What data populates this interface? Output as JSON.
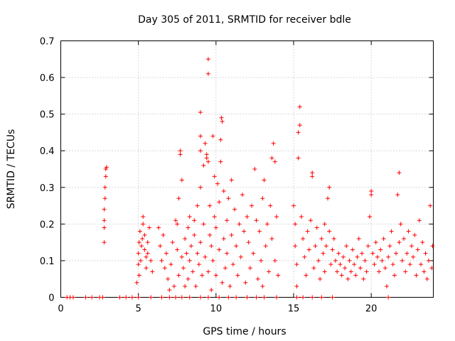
{
  "chart_data": {
    "type": "scatter",
    "title": "Day 305 of 2011, SRMTID for receiver bdle",
    "xlabel": "GPS time / hours",
    "ylabel": "SRMTID / TECUs",
    "xlim": [
      0,
      24
    ],
    "ylim": [
      0,
      0.7
    ],
    "xticks": [
      0,
      5,
      10,
      15,
      20
    ],
    "yticks": [
      0,
      0.1,
      0.2,
      0.3,
      0.4,
      0.5,
      0.6,
      0.7
    ],
    "grid": true,
    "marker": "+",
    "color": "#ff0000",
    "series": [
      {
        "name": "SRMTID",
        "points": [
          [
            0.4,
            0
          ],
          [
            0.6,
            0
          ],
          [
            0.8,
            0
          ],
          [
            1.6,
            0
          ],
          [
            2.0,
            0
          ],
          [
            2.5,
            0
          ],
          [
            2.7,
            0
          ],
          [
            3.8,
            0
          ],
          [
            4.2,
            0
          ],
          [
            4.6,
            0
          ],
          [
            5.0,
            0
          ],
          [
            5.8,
            0
          ],
          [
            6.5,
            0
          ],
          [
            7.0,
            0
          ],
          [
            7.4,
            0
          ],
          [
            7.8,
            0
          ],
          [
            8.3,
            0
          ],
          [
            9.0,
            0
          ],
          [
            9.5,
            0
          ],
          [
            10.2,
            0
          ],
          [
            10.8,
            0
          ],
          [
            11.3,
            0
          ],
          [
            12.0,
            0
          ],
          [
            12.6,
            0
          ],
          [
            13.1,
            0
          ],
          [
            13.9,
            0
          ],
          [
            15.2,
            0
          ],
          [
            15.6,
            0
          ],
          [
            16.2,
            0
          ],
          [
            16.8,
            0
          ],
          [
            17.5,
            0
          ],
          [
            21.1,
            0
          ],
          [
            2.8,
            0.15
          ],
          [
            2.8,
            0.19
          ],
          [
            2.8,
            0.21
          ],
          [
            2.8,
            0.24
          ],
          [
            2.85,
            0.27
          ],
          [
            2.85,
            0.3
          ],
          [
            2.9,
            0.33
          ],
          [
            2.9,
            0.35
          ],
          [
            2.95,
            0.355
          ],
          [
            5.0,
            0.09
          ],
          [
            5.0,
            0.12
          ],
          [
            5.05,
            0.15
          ],
          [
            5.1,
            0.18
          ],
          [
            5.15,
            0.1
          ],
          [
            5.2,
            0.14
          ],
          [
            5.3,
            0.2
          ],
          [
            5.3,
            0.22
          ],
          [
            5.4,
            0.13
          ],
          [
            5.4,
            0.17
          ],
          [
            5.5,
            0.08
          ],
          [
            5.5,
            0.11
          ],
          [
            5.6,
            0.15
          ],
          [
            5.7,
            0.19
          ],
          [
            5.8,
            0.1
          ],
          [
            5.9,
            0.07
          ],
          [
            4.9,
            0.04
          ],
          [
            5.05,
            0.06
          ],
          [
            5.6,
            0.12
          ],
          [
            5.25,
            0.16
          ],
          [
            6.3,
            0.19
          ],
          [
            6.4,
            0.14
          ],
          [
            6.5,
            0.1
          ],
          [
            6.6,
            0.17
          ],
          [
            6.7,
            0.08
          ],
          [
            6.8,
            0.12
          ],
          [
            6.9,
            0.05
          ],
          [
            7.0,
            0.02
          ],
          [
            7.1,
            0.09
          ],
          [
            7.2,
            0.15
          ],
          [
            7.3,
            0.03
          ],
          [
            7.4,
            0.21
          ],
          [
            7.5,
            0.2
          ],
          [
            7.5,
            0.13
          ],
          [
            7.6,
            0.27
          ],
          [
            7.6,
            0.06
          ],
          [
            7.7,
            0.39
          ],
          [
            7.7,
            0.4
          ],
          [
            7.8,
            0.11
          ],
          [
            7.8,
            0.32
          ],
          [
            7.9,
            0.08
          ],
          [
            8.0,
            0.16
          ],
          [
            8.0,
            0.03
          ],
          [
            8.1,
            0.12
          ],
          [
            8.2,
            0.19
          ],
          [
            8.2,
            0.05
          ],
          [
            8.3,
            0.22
          ],
          [
            8.3,
            0.1
          ],
          [
            8.4,
            0.14
          ],
          [
            8.5,
            0.07
          ],
          [
            8.6,
            0.17
          ],
          [
            8.6,
            0.21
          ],
          [
            8.7,
            0.03
          ],
          [
            8.8,
            0.12
          ],
          [
            8.8,
            0.25
          ],
          [
            8.9,
            0.09
          ],
          [
            9.0,
            0.15
          ],
          [
            9.0,
            0.3
          ],
          [
            9.0,
            0.4
          ],
          [
            9.0,
            0.44
          ],
          [
            9.0,
            0.505
          ],
          [
            9.1,
            0.06
          ],
          [
            9.2,
            0.2
          ],
          [
            9.2,
            0.36
          ],
          [
            9.3,
            0.42
          ],
          [
            9.3,
            0.11
          ],
          [
            9.4,
            0.38
          ],
          [
            9.4,
            0.39
          ],
          [
            9.5,
            0.61
          ],
          [
            9.5,
            0.65
          ],
          [
            9.5,
            0.37
          ],
          [
            9.5,
            0.07
          ],
          [
            9.6,
            0.25
          ],
          [
            9.6,
            0.17
          ],
          [
            9.7,
            0.02
          ],
          [
            9.7,
            0.14
          ],
          [
            9.8,
            0.1
          ],
          [
            9.8,
            0.44
          ],
          [
            9.9,
            0.33
          ],
          [
            9.9,
            0.22
          ],
          [
            10.0,
            0.06
          ],
          [
            10.0,
            0.19
          ],
          [
            10.1,
            0.31
          ],
          [
            10.2,
            0.13
          ],
          [
            10.2,
            0.26
          ],
          [
            10.3,
            0.37
          ],
          [
            10.3,
            0.43
          ],
          [
            10.35,
            0.49
          ],
          [
            10.4,
            0.48
          ],
          [
            10.4,
            0.04
          ],
          [
            10.5,
            0.16
          ],
          [
            10.5,
            0.29
          ],
          [
            10.6,
            0.08
          ],
          [
            10.7,
            0.21
          ],
          [
            10.7,
            0.12
          ],
          [
            10.8,
            0.27
          ],
          [
            10.9,
            0.03
          ],
          [
            11.0,
            0.17
          ],
          [
            11.0,
            0.32
          ],
          [
            11.1,
            0.09
          ],
          [
            11.2,
            0.24
          ],
          [
            11.3,
            0.14
          ],
          [
            11.4,
            0.06
          ],
          [
            11.5,
            0.2
          ],
          [
            11.6,
            0.11
          ],
          [
            11.7,
            0.28
          ],
          [
            11.8,
            0.18
          ],
          [
            11.9,
            0.04
          ],
          [
            12.0,
            0.22
          ],
          [
            12.1,
            0.15
          ],
          [
            12.2,
            0.08
          ],
          [
            12.3,
            0.25
          ],
          [
            12.4,
            0.12
          ],
          [
            12.5,
            0.35
          ],
          [
            12.6,
            0.21
          ],
          [
            12.7,
            0.05
          ],
          [
            12.8,
            0.18
          ],
          [
            12.9,
            0.1
          ],
          [
            13.0,
            0.27
          ],
          [
            13.0,
            0.03
          ],
          [
            13.1,
            0.32
          ],
          [
            13.2,
            0.14
          ],
          [
            13.3,
            0.2
          ],
          [
            13.4,
            0.07
          ],
          [
            13.5,
            0.25
          ],
          [
            13.6,
            0.38
          ],
          [
            13.6,
            0.16
          ],
          [
            13.7,
            0.42
          ],
          [
            13.8,
            0.37
          ],
          [
            13.8,
            0.1
          ],
          [
            13.9,
            0.22
          ],
          [
            14.0,
            0.06
          ],
          [
            15.0,
            0.25
          ],
          [
            15.1,
            0.2
          ],
          [
            15.1,
            0.14
          ],
          [
            15.2,
            0.09
          ],
          [
            15.2,
            0.03
          ],
          [
            15.3,
            0.38
          ],
          [
            15.3,
            0.45
          ],
          [
            15.4,
            0.47
          ],
          [
            15.4,
            0.52
          ],
          [
            15.5,
            0.22
          ],
          [
            15.6,
            0.16
          ],
          [
            15.7,
            0.11
          ],
          [
            15.8,
            0.06
          ],
          [
            15.9,
            0.18
          ],
          [
            16.0,
            0.13
          ],
          [
            16.1,
            0.21
          ],
          [
            16.2,
            0.33
          ],
          [
            16.2,
            0.34
          ],
          [
            16.3,
            0.08
          ],
          [
            16.4,
            0.14
          ],
          [
            16.5,
            0.19
          ],
          [
            16.6,
            0.1
          ],
          [
            16.7,
            0.05
          ],
          [
            16.8,
            0.16
          ],
          [
            16.9,
            0.12
          ],
          [
            17.0,
            0.2
          ],
          [
            17.0,
            0.07
          ],
          [
            17.1,
            0.14
          ],
          [
            17.2,
            0.27
          ],
          [
            17.3,
            0.18
          ],
          [
            17.3,
            0.3
          ],
          [
            17.4,
            0.09
          ],
          [
            17.5,
            0.13
          ],
          [
            17.6,
            0.16
          ],
          [
            17.7,
            0.1
          ],
          [
            17.8,
            0.07
          ],
          [
            17.9,
            0.12
          ],
          [
            18.0,
            0.09
          ],
          [
            18.1,
            0.06
          ],
          [
            18.2,
            0.11
          ],
          [
            18.3,
            0.08
          ],
          [
            18.4,
            0.14
          ],
          [
            18.5,
            0.05
          ],
          [
            18.6,
            0.1
          ],
          [
            18.7,
            0.07
          ],
          [
            18.8,
            0.13
          ],
          [
            18.9,
            0.09
          ],
          [
            19.0,
            0.06
          ],
          [
            19.1,
            0.11
          ],
          [
            19.2,
            0.16
          ],
          [
            19.3,
            0.08
          ],
          [
            19.4,
            0.12
          ],
          [
            19.5,
            0.05
          ],
          [
            19.6,
            0.1
          ],
          [
            19.7,
            0.07
          ],
          [
            19.8,
            0.14
          ],
          [
            19.9,
            0.22
          ],
          [
            20.0,
            0.28
          ],
          [
            20.0,
            0.29
          ],
          [
            20.1,
            0.12
          ],
          [
            20.2,
            0.09
          ],
          [
            20.3,
            0.15
          ],
          [
            20.4,
            0.11
          ],
          [
            20.5,
            0.07
          ],
          [
            20.6,
            0.13
          ],
          [
            20.7,
            0.1
          ],
          [
            20.8,
            0.16
          ],
          [
            20.9,
            0.08
          ],
          [
            21.0,
            0.03
          ],
          [
            21.1,
            0.11
          ],
          [
            21.2,
            0.14
          ],
          [
            21.3,
            0.18
          ],
          [
            21.4,
            0.09
          ],
          [
            21.5,
            0.06
          ],
          [
            21.6,
            0.12
          ],
          [
            21.7,
            0.28
          ],
          [
            21.8,
            0.34
          ],
          [
            21.8,
            0.15
          ],
          [
            21.9,
            0.2
          ],
          [
            22.0,
            0.1
          ],
          [
            22.1,
            0.16
          ],
          [
            22.2,
            0.07
          ],
          [
            22.3,
            0.12
          ],
          [
            22.4,
            0.18
          ],
          [
            22.5,
            0.09
          ],
          [
            22.6,
            0.14
          ],
          [
            22.7,
            0.11
          ],
          [
            22.8,
            0.17
          ],
          [
            22.9,
            0.06
          ],
          [
            23.0,
            0.13
          ],
          [
            23.1,
            0.21
          ],
          [
            23.2,
            0.09
          ],
          [
            23.3,
            0.15
          ],
          [
            23.4,
            0.07
          ],
          [
            23.5,
            0.12
          ],
          [
            23.6,
            0.05
          ],
          [
            23.7,
            0.1
          ],
          [
            23.8,
            0.25
          ],
          [
            23.9,
            0.08
          ],
          [
            23.95,
            0.14
          ]
        ]
      }
    ]
  }
}
